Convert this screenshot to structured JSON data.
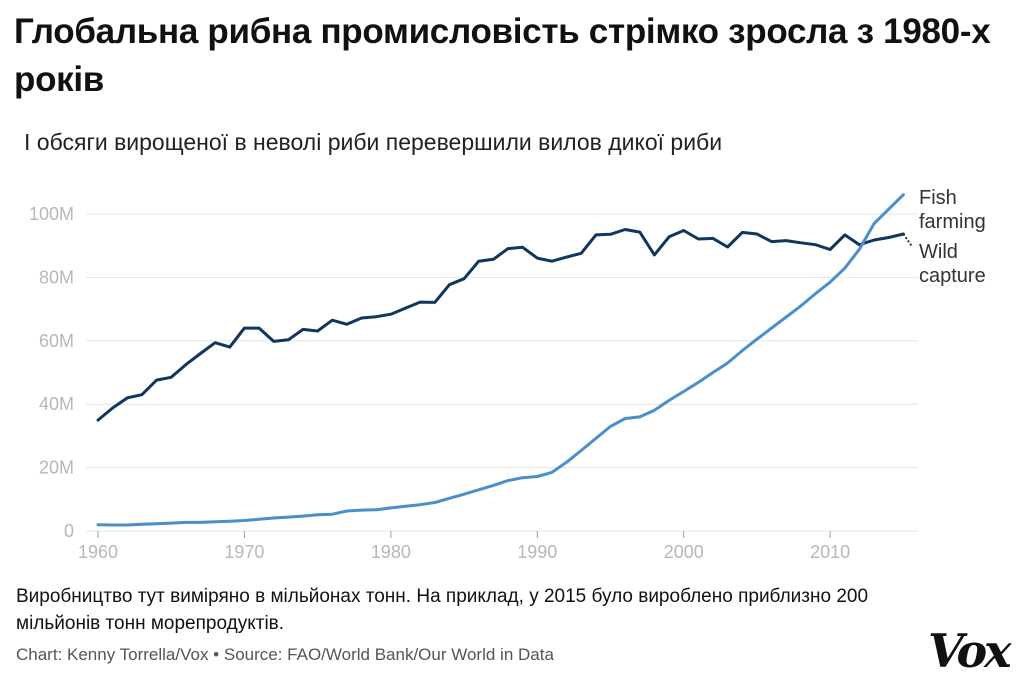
{
  "title": "Глобальна рибна промисловість стрімко зросла з 1980-х років",
  "subtitle": "І обсяги вирощеної в неволі риби перевершили вилов дикої риби",
  "note": "Виробництво тут виміряно в мільйонах тонн. На приклад, у 2015 було вироблено приблизно 200 мільйонів тонн морепродуктів.",
  "credit": "Chart: Kenny Torrella/Vox • Source: FAO/World Bank/Our World in Data",
  "logo": "Vox",
  "colors": {
    "fish_farming": "#4a8fcb",
    "wild_capture": "#10355f",
    "grid": "#e6e6e6",
    "tick": "#b7b7b7"
  },
  "chart_data": {
    "type": "line",
    "x_ticks": [
      "1960",
      "1970",
      "1980",
      "1990",
      "2000",
      "2010"
    ],
    "y_ticks": [
      "0",
      "20M",
      "40M",
      "60M",
      "80M",
      "100M"
    ],
    "xlim": [
      1960,
      2016
    ],
    "ylim": [
      0,
      100
    ],
    "y_unit": "million tonnes",
    "grid": true,
    "legend": "inline labels at right end of lines",
    "x": [
      1960,
      1961,
      1962,
      1963,
      1964,
      1965,
      1966,
      1967,
      1968,
      1969,
      1970,
      1971,
      1972,
      1973,
      1974,
      1975,
      1976,
      1977,
      1978,
      1979,
      1980,
      1981,
      1982,
      1983,
      1984,
      1985,
      1986,
      1987,
      1988,
      1989,
      1990,
      1991,
      1992,
      1993,
      1994,
      1995,
      1996,
      1997,
      1998,
      1999,
      2000,
      2001,
      2002,
      2003,
      2004,
      2005,
      2006,
      2007,
      2008,
      2009,
      2010,
      2011,
      2012,
      2013,
      2014,
      2015
    ],
    "series": [
      {
        "name": "Wild\ncapture",
        "values": [
          35,
          38.8,
          42,
          43,
          47.6,
          48.5,
          52.5,
          56,
          59.4,
          58,
          64,
          64,
          59.8,
          60.3,
          63.6,
          63.1,
          66.5,
          65.2,
          67.2,
          67.6,
          68.4,
          70.3,
          72.2,
          72.1,
          77.7,
          79.6,
          85.1,
          85.7,
          89.1,
          89.5,
          86.1,
          85.1,
          86.4,
          87.6,
          93.4,
          93.6,
          95.1,
          94.3,
          87.1,
          92.8,
          94.8,
          92.1,
          92.3,
          89.6,
          94.2,
          93.7,
          91.3,
          91.6,
          90.9,
          90.3,
          88.8,
          93.4,
          90.3,
          91.8,
          92.6,
          93.7
        ]
      },
      {
        "name": "Fish\nfarming",
        "values": [
          2,
          1.9,
          1.9,
          2.1,
          2.3,
          2.5,
          2.7,
          2.7,
          2.9,
          3.1,
          3.3,
          3.7,
          4.1,
          4.4,
          4.7,
          5.1,
          5.3,
          6.3,
          6.6,
          6.7,
          7.3,
          7.8,
          8.3,
          9,
          10.3,
          11.6,
          13,
          14.4,
          15.9,
          16.8,
          17.2,
          18.5,
          21.7,
          25.4,
          29.2,
          33,
          35.5,
          36,
          38.1,
          41.2,
          44,
          46.9,
          50,
          53,
          56.9,
          60.5,
          64,
          67.5,
          71,
          74.9,
          78.5,
          82.9,
          88.9,
          97,
          101.5,
          106.1
        ]
      }
    ]
  }
}
